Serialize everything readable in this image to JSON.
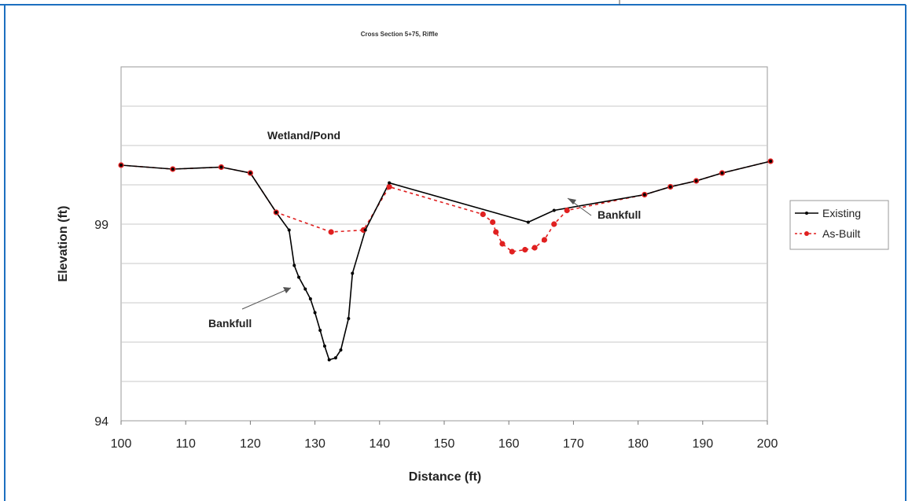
{
  "chart_data": {
    "type": "line",
    "title": "Cross Section 5+75, Riffle",
    "xlabel": "Distance (ft)",
    "ylabel": "Elevation (ft)",
    "xlim": [
      100,
      200
    ],
    "ylim": [
      94,
      103
    ],
    "x_ticks": [
      100,
      110,
      120,
      130,
      140,
      150,
      160,
      170,
      180,
      190,
      200
    ],
    "y_ticks_labeled": [
      94,
      99
    ],
    "y_gridlines": [
      94,
      95,
      96,
      97,
      98,
      99,
      100,
      101,
      102
    ],
    "grid": true,
    "legend_position": "right",
    "colors": {
      "existing": "#000000",
      "as_built": "#e02020",
      "frame": "#1c6fc0",
      "plot_border": "#9a9a9a",
      "grid": "#c8c8c8"
    },
    "series": [
      {
        "name": "Existing",
        "style": "solid-line-with-small-markers",
        "x": [
          100,
          108,
          115.5,
          120,
          124,
          126,
          126.8,
          127.5,
          128.5,
          129.3,
          130,
          130.8,
          131.5,
          132.2,
          133.2,
          134,
          135.2,
          135.8,
          137.8,
          141.5,
          163,
          167,
          181,
          185,
          189,
          193,
          200.5
        ],
        "y": [
          100.5,
          100.4,
          100.45,
          100.3,
          99.3,
          98.85,
          97.95,
          97.65,
          97.35,
          97.1,
          96.75,
          96.3,
          95.9,
          95.55,
          95.6,
          95.8,
          96.6,
          97.75,
          98.85,
          100.05,
          99.05,
          99.35,
          99.75,
          99.95,
          100.1,
          100.3,
          100.6
        ]
      },
      {
        "name": "As-Built",
        "style": "dashed-line-with-round-markers",
        "x": [
          100,
          108,
          115.5,
          120,
          124,
          132.5,
          137.5,
          141.5,
          156,
          157.5,
          158,
          159,
          160.5,
          162.5,
          164,
          165.5,
          167,
          169,
          181,
          185,
          189,
          193,
          200.5
        ],
        "y": [
          100.5,
          100.4,
          100.45,
          100.3,
          99.3,
          98.8,
          98.85,
          99.95,
          99.25,
          99.05,
          98.8,
          98.5,
          98.3,
          98.35,
          98.4,
          98.6,
          99.0,
          99.35,
          99.75,
          99.95,
          100.1,
          100.3,
          100.6
        ]
      }
    ],
    "annotations": [
      {
        "text": "Wetland/Pond"
      },
      {
        "text": "Bankfull"
      },
      {
        "text": "Bankfull"
      }
    ]
  }
}
